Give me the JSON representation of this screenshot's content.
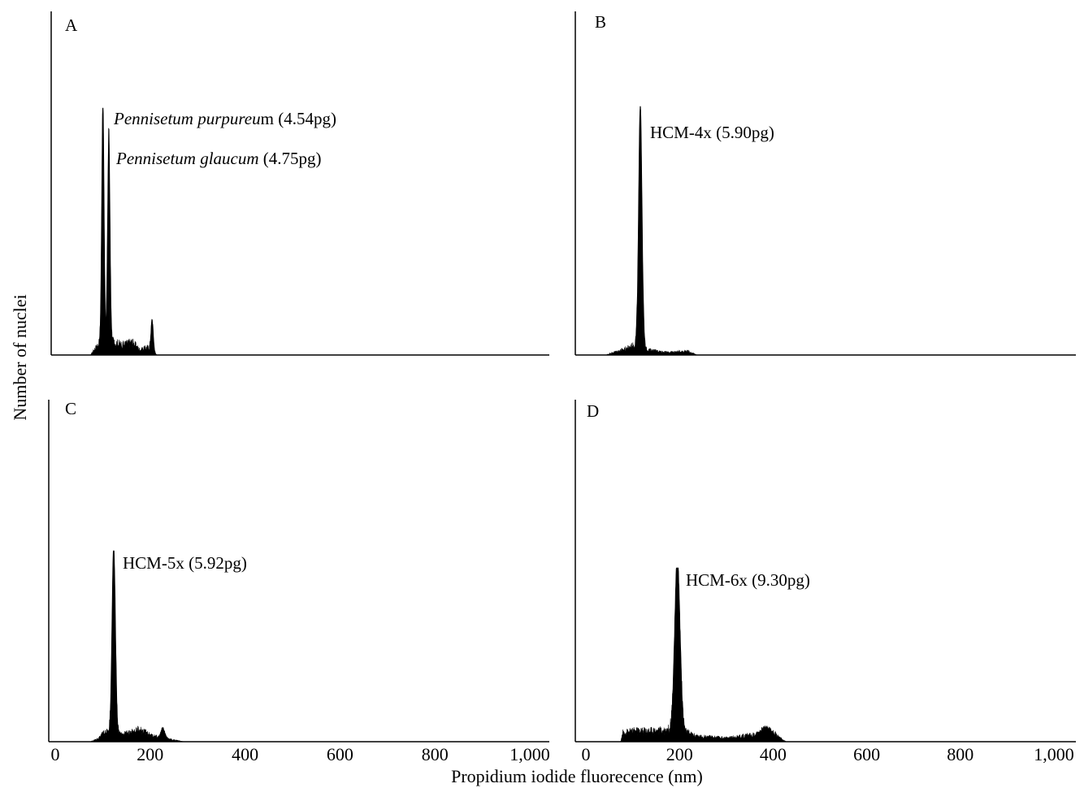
{
  "figure": {
    "ylabel": "Number of nuclei",
    "xlabel": "Propidium iodide fluorecence (nm)"
  },
  "chart_data": [
    {
      "type": "area",
      "panel": "A",
      "xlim": [
        0,
        1000
      ],
      "annotations": [
        {
          "italic": "Pennisetum purpureu",
          "plain": "m (4.54pg)",
          "x": 100
        },
        {
          "italic": "Pennisetum glaucum",
          "plain": " (4.75pg)",
          "x": 112
        }
      ],
      "peaks": [
        {
          "x": 100,
          "y": 1.0,
          "width": 2.5
        },
        {
          "x": 112,
          "y": 0.87,
          "width": 2.5
        },
        {
          "x": 200,
          "y": 0.13,
          "width": 2.5
        }
      ],
      "baseline": [
        [
          75,
          0
        ],
        [
          82,
          0.02
        ],
        [
          90,
          0.04
        ],
        [
          120,
          0.05
        ],
        [
          140,
          0.04
        ],
        [
          160,
          0.05
        ],
        [
          175,
          0.02
        ],
        [
          190,
          0.03
        ],
        [
          210,
          0
        ]
      ]
    },
    {
      "type": "area",
      "panel": "B",
      "xlim": [
        0,
        1000
      ],
      "annotations": [
        {
          "italic": "",
          "plain": "HCM-4x (5.90pg)",
          "x": 125
        }
      ],
      "peaks": [
        {
          "x": 125,
          "y": 1.0,
          "width": 3.5
        }
      ],
      "baseline": [
        [
          55,
          0
        ],
        [
          70,
          0.01
        ],
        [
          90,
          0.02
        ],
        [
          115,
          0.04
        ],
        [
          140,
          0.02
        ],
        [
          180,
          0.01
        ],
        [
          220,
          0.015
        ],
        [
          240,
          0
        ]
      ]
    },
    {
      "type": "area",
      "panel": "C",
      "xlim": [
        0,
        1000
      ],
      "annotations": [
        {
          "italic": "",
          "plain": "HCM-5x (5.92pg)",
          "x": 122
        }
      ],
      "peaks": [
        {
          "x": 122,
          "y": 1.0,
          "width": 3.5
        },
        {
          "x": 222,
          "y": 0.05,
          "width": 4
        }
      ],
      "baseline": [
        [
          75,
          0
        ],
        [
          90,
          0.015
        ],
        [
          105,
          0.05
        ],
        [
          140,
          0.035
        ],
        [
          175,
          0.06
        ],
        [
          200,
          0.03
        ],
        [
          240,
          0.01
        ],
        [
          265,
          0
        ]
      ]
    },
    {
      "type": "area",
      "panel": "D",
      "xlim": [
        0,
        1000
      ],
      "xticks": [
        0,
        200,
        400,
        600,
        800,
        1000
      ],
      "xtick_labels": [
        "0",
        "200",
        "400",
        "600",
        "800",
        "1,000"
      ],
      "annotations": [
        {
          "italic": "",
          "plain": "HCM-6x (9.30pg)",
          "x": 200
        }
      ],
      "peaks": [
        {
          "x": 200,
          "y": 1.0,
          "width": 5.5
        },
        {
          "x": 380,
          "y": 0.05,
          "width": 12
        }
      ],
      "baseline": [
        [
          85,
          0
        ],
        [
          90,
          0.05
        ],
        [
          120,
          0.06
        ],
        [
          160,
          0.06
        ],
        [
          200,
          0.07
        ],
        [
          240,
          0.03
        ],
        [
          300,
          0.02
        ],
        [
          340,
          0.035
        ],
        [
          400,
          0.03
        ],
        [
          420,
          0
        ]
      ]
    }
  ],
  "bottom_left_axis": {
    "xticks": [
      0,
      200,
      400,
      600,
      800,
      1000
    ],
    "xtick_labels": [
      "0",
      "200",
      "400",
      "600",
      "800",
      "1,000"
    ]
  }
}
